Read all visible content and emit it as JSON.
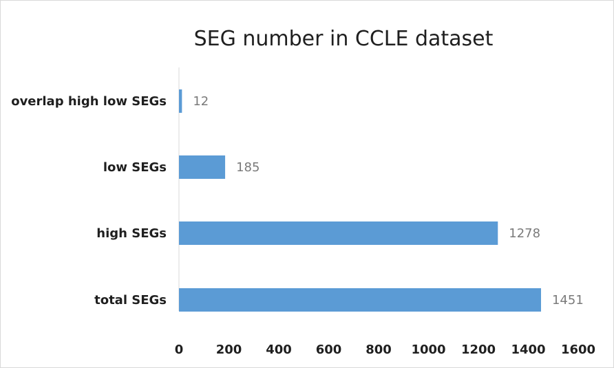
{
  "chart_data": {
    "type": "bar",
    "orientation": "horizontal",
    "title": "SEG number in CCLE dataset",
    "categories": [
      "overlap high low SEGs",
      "low SEGs",
      "high SEGs",
      "total SEGs"
    ],
    "values": [
      12,
      185,
      1278,
      1451
    ],
    "xlim": [
      0,
      1600
    ],
    "xticks": [
      0,
      200,
      400,
      600,
      800,
      1000,
      1200,
      1400,
      1600
    ],
    "grid": false,
    "legend": "none",
    "bar_color": "#5b9bd5"
  }
}
